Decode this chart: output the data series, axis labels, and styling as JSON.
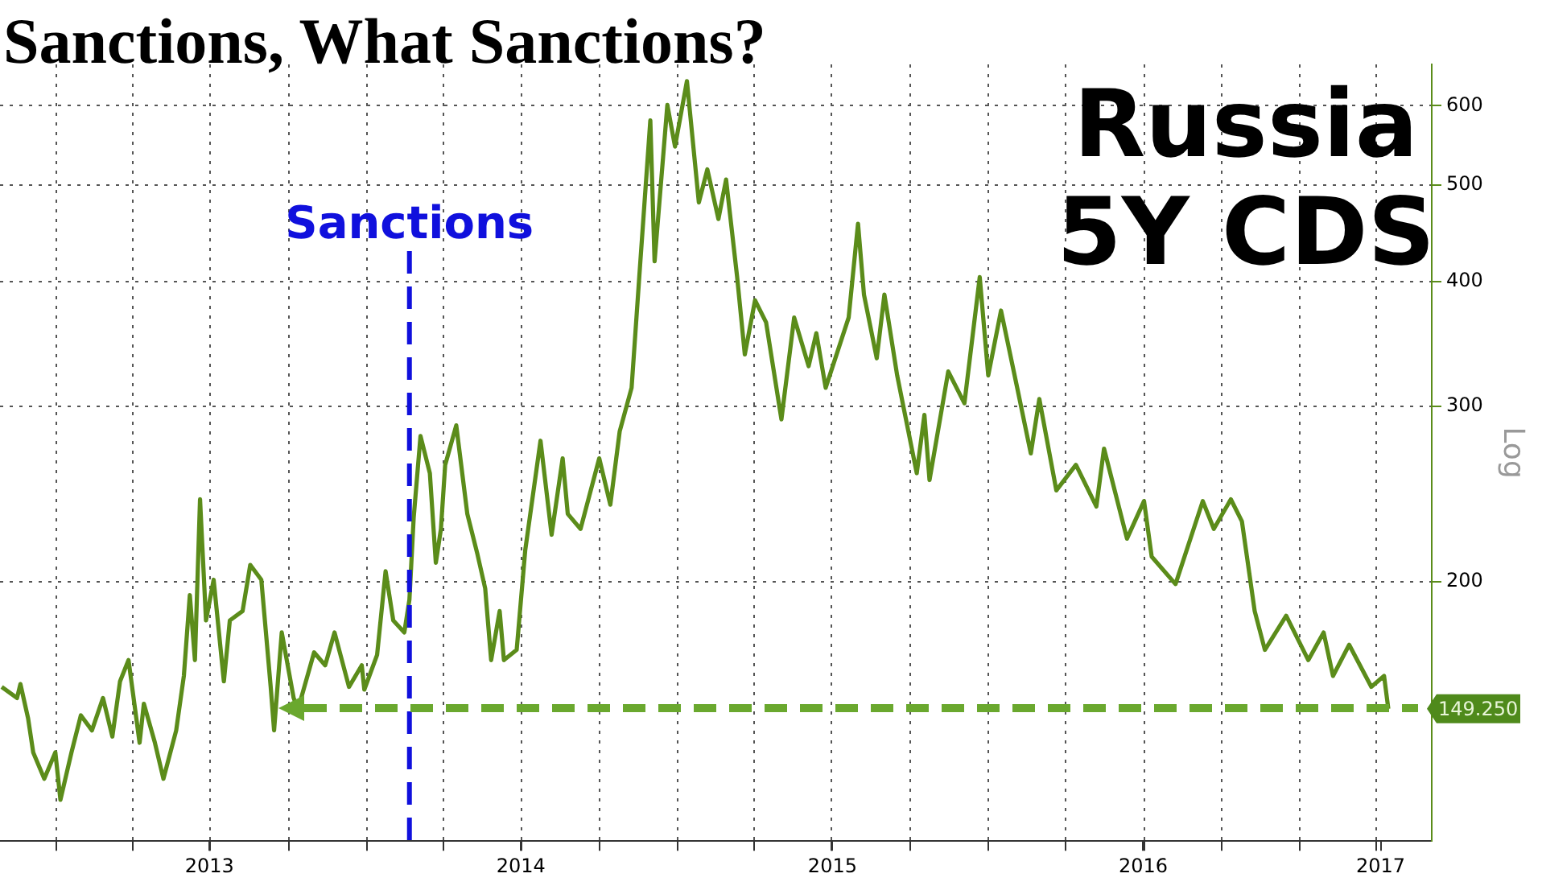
{
  "chart_data": {
    "type": "line",
    "title": "Sanctions, What Sanctions?",
    "subtitle": "Russia 5Y CDS",
    "ylabel": "Log",
    "log": true,
    "grid": true,
    "legend": false,
    "marker": "none",
    "xlim": [
      "2012-10-27",
      "2017-06-05"
    ],
    "xticks": [
      {
        "value": "2013-01-01",
        "label": null
      },
      {
        "value": "2013-04-01",
        "label": null
      },
      {
        "value": "2013-06-30",
        "label": "2013"
      },
      {
        "value": "2013-07-01",
        "label": null
      },
      {
        "value": "2013-10-01",
        "label": null
      },
      {
        "value": "2014-01-01",
        "label": null
      },
      {
        "value": "2014-04-01",
        "label": null
      },
      {
        "value": "2014-07-01",
        "label": "2014"
      },
      {
        "value": "2014-07-02",
        "label": null
      },
      {
        "value": "2014-10-01",
        "label": null
      },
      {
        "value": "2015-01-01",
        "label": null
      },
      {
        "value": "2015-04-01",
        "label": null
      },
      {
        "value": "2015-07-02",
        "label": "2015"
      },
      {
        "value": "2015-07-01",
        "label": null
      },
      {
        "value": "2015-10-01",
        "label": null
      },
      {
        "value": "2016-01-01",
        "label": null
      },
      {
        "value": "2016-04-01",
        "label": null
      },
      {
        "value": "2016-07-01",
        "label": "2016"
      },
      {
        "value": "2016-07-02",
        "label": null
      },
      {
        "value": "2016-10-01",
        "label": null
      },
      {
        "value": "2017-01-01",
        "label": null
      },
      {
        "value": "2017-04-01",
        "label": null
      },
      {
        "value": "2017-04-06",
        "label": "2017"
      }
    ],
    "ylim": [
      110,
      660
    ],
    "yticks": [
      200,
      300,
      400,
      500,
      600
    ],
    "series": [
      {
        "type": "line",
        "color": "#5b8c1a",
        "x": [
          "2012-10-29",
          "2012-11-16",
          "2012-11-20",
          "2012-11-29",
          "2012-12-05",
          "2012-12-18",
          "2012-12-31",
          "2013-01-06",
          "2013-01-19",
          "2013-01-30",
          "2013-02-12",
          "2013-02-25",
          "2013-03-08",
          "2013-03-17",
          "2013-03-27",
          "2013-04-09",
          "2013-04-14",
          "2013-04-27",
          "2013-05-07",
          "2013-05-22",
          "2013-05-31",
          "2013-06-07",
          "2013-06-13",
          "2013-06-19",
          "2013-06-26",
          "2013-07-05",
          "2013-07-17",
          "2013-07-24",
          "2013-08-08",
          "2013-08-17",
          "2013-08-30",
          "2013-09-10",
          "2013-09-14",
          "2013-09-23",
          "2013-10-07",
          "2013-10-12",
          "2013-10-31",
          "2013-11-13",
          "2013-11-24",
          "2013-12-11",
          "2013-12-26",
          "2013-12-29",
          "2014-01-13",
          "2014-01-23",
          "2014-02-01",
          "2014-02-14",
          "2014-02-20",
          "2014-02-25",
          "2014-03-05",
          "2014-03-16",
          "2014-03-23",
          "2014-03-29",
          "2014-04-03",
          "2014-04-16",
          "2014-04-29",
          "2014-05-11",
          "2014-05-20",
          "2014-05-27",
          "2014-06-06",
          "2014-06-11",
          "2014-06-26",
          "2014-07-06",
          "2014-07-24",
          "2014-08-06",
          "2014-08-19",
          "2014-08-25",
          "2014-09-09",
          "2014-10-01",
          "2014-10-14",
          "2014-10-25",
          "2014-11-08",
          "2014-11-17",
          "2014-11-30",
          "2014-12-05",
          "2014-12-20",
          "2014-12-29",
          "2015-01-12",
          "2015-01-26",
          "2015-02-05",
          "2015-02-18",
          "2015-02-27",
          "2015-03-12",
          "2015-03-21",
          "2015-04-02",
          "2015-04-15",
          "2015-05-03",
          "2015-05-18",
          "2015-06-04",
          "2015-06-13",
          "2015-06-24",
          "2015-07-21",
          "2015-08-01",
          "2015-08-08",
          "2015-08-23",
          "2015-09-01",
          "2015-09-16",
          "2015-10-09",
          "2015-10-18",
          "2015-10-24",
          "2015-11-15",
          "2015-12-04",
          "2015-12-22",
          "2016-01-01",
          "2016-01-16",
          "2016-02-04",
          "2016-02-20",
          "2016-03-01",
          "2016-03-21",
          "2016-04-13",
          "2016-05-07",
          "2016-05-16",
          "2016-06-12",
          "2016-07-02",
          "2016-07-11",
          "2016-08-08",
          "2016-09-09",
          "2016-09-22",
          "2016-10-12",
          "2016-10-25",
          "2016-11-09",
          "2016-11-21",
          "2016-12-16",
          "2017-01-11",
          "2017-01-29",
          "2017-02-09",
          "2017-02-28",
          "2017-03-26",
          "2017-04-10",
          "2017-04-15"
        ],
        "values": [
          157,
          153,
          158,
          146,
          135,
          127,
          135,
          121,
          135,
          147,
          142,
          153,
          140,
          159,
          167,
          138,
          151,
          138,
          127,
          142,
          161,
          194,
          167,
          242,
          183,
          201,
          159,
          183,
          187,
          208,
          201,
          157,
          142,
          178,
          153,
          149,
          170,
          165,
          178,
          157,
          165,
          156,
          169,
          205,
          183,
          178,
          192,
          232,
          280,
          257,
          209,
          226,
          262,
          287,
          234,
          213,
          197,
          167,
          187,
          167,
          171,
          215,
          277,
          223,
          266,
          234,
          226,
          266,
          239,
          283,
          313,
          404,
          580,
          419,
          601,
          546,
          635,
          480,
          518,
          462,
          506,
          404,
          338,
          383,
          364,
          291,
          368,
          329,
          355,
          313,
          368,
          457,
          388,
          335,
          388,
          322,
          257,
          294,
          253,
          325,
          302,
          404,
          322,
          374,
          313,
          269,
          305,
          247,
          262,
          238,
          272,
          221,
          241,
          212,
          199,
          241,
          226,
          242,
          230,
          187,
          171,
          185,
          167,
          178,
          161,
          173,
          157,
          161,
          149.25
        ]
      }
    ],
    "ref_lines": [
      {
        "axis": "x",
        "value": "2014-02-20",
        "label": "Sanctions",
        "color": "#1010dd",
        "line_style": "dashed"
      }
    ],
    "annotations": [
      {
        "text": "149.250",
        "x": "2017-04-15",
        "y": 149.25
      }
    ]
  }
}
